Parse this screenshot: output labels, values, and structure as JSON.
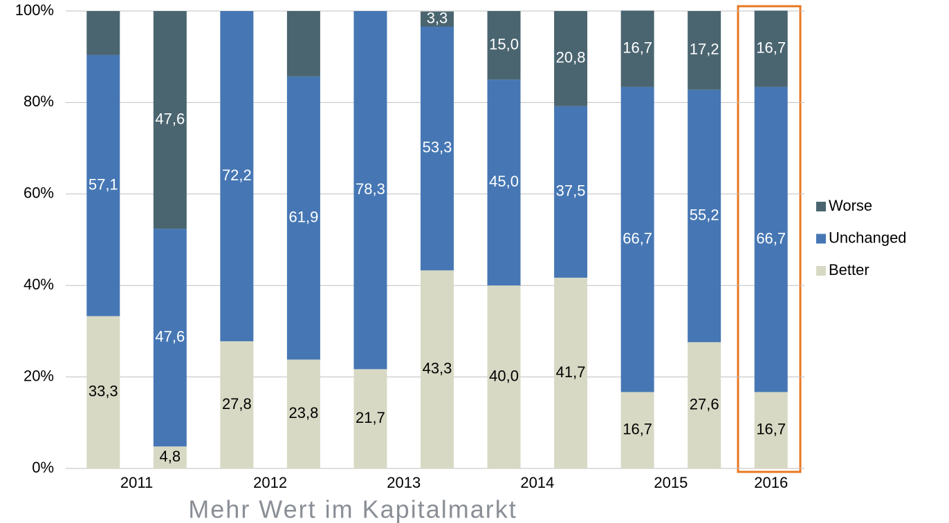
{
  "chart_data": {
    "type": "stacked_bar",
    "categories": [
      "2011",
      null,
      "2012",
      null,
      "2013",
      null,
      "2014",
      null,
      "2015",
      null,
      "2016"
    ],
    "series": [
      {
        "name": "Better",
        "color": "#d8d9c4",
        "label_color": "#000000",
        "values": [
          33.3,
          4.8,
          27.8,
          23.8,
          21.7,
          43.3,
          40.0,
          41.7,
          16.7,
          27.6,
          16.7
        ],
        "value_labels": [
          "33,3",
          "4,8",
          "27,8",
          "23,8",
          "21,7",
          "43,3",
          "40,0",
          "41,7",
          "16,7",
          "27,6",
          "16,7"
        ]
      },
      {
        "name": "Unchanged",
        "color": "#4677b4",
        "label_color": "#ffffff",
        "values": [
          57.1,
          47.6,
          72.2,
          61.9,
          78.3,
          53.3,
          45.0,
          37.5,
          66.7,
          55.2,
          66.7
        ],
        "value_labels": [
          "57,1",
          "47,6",
          "72,2",
          "61,9",
          "78,3",
          "53,3",
          "45,0",
          "37,5",
          "66,7",
          "55,2",
          "66,7"
        ]
      },
      {
        "name": "Worse",
        "color": "#4a6570",
        "label_color": "#ffffff",
        "values": [
          9.6,
          47.6,
          0,
          14.3,
          0,
          3.3,
          15.0,
          20.8,
          16.7,
          17.2,
          16.7
        ],
        "value_labels": [
          null,
          "47,6",
          null,
          null,
          null,
          "3,3",
          "15,0",
          "20,8",
          "16,7",
          "17,2",
          "16,7"
        ]
      }
    ],
    "ylim": [
      0,
      100
    ],
    "yticks": [
      {
        "value": 0,
        "label": "0%"
      },
      {
        "value": 20,
        "label": "20%"
      },
      {
        "value": 40,
        "label": "40%"
      },
      {
        "value": 60,
        "label": "60%"
      },
      {
        "value": 80,
        "label": "80%"
      },
      {
        "value": 100,
        "label": "100%"
      }
    ],
    "grid": true,
    "legend": "right",
    "footer": "Mehr Wert im Kapitalmarkt"
  }
}
